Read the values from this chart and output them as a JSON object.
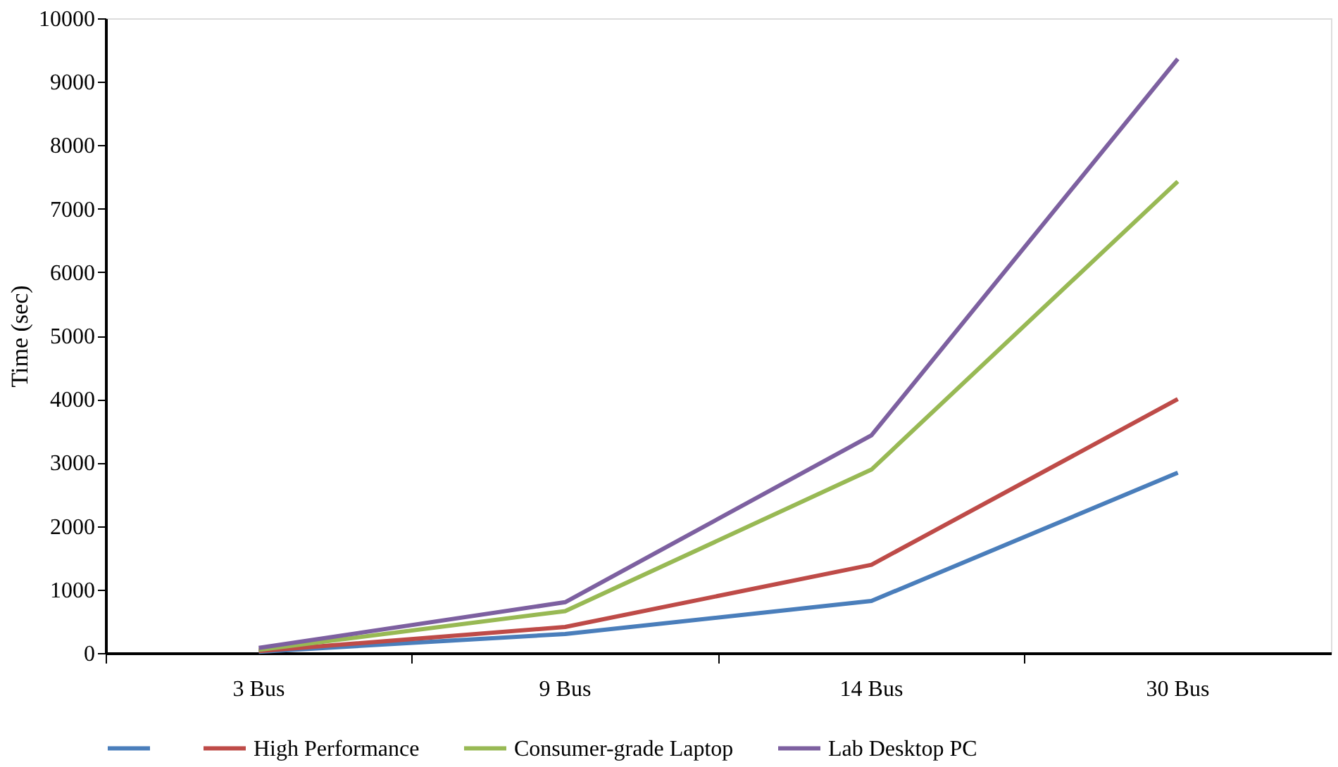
{
  "chart_data": {
    "type": "line",
    "ylabel": "Time (sec)",
    "categories": [
      "3 Bus",
      "9 Bus",
      "14 Bus",
      "30 Bus"
    ],
    "series": [
      {
        "color": "#4a7ebb",
        "values": [
          20,
          300,
          820,
          2840
        ]
      },
      {
        "name": "High Performance",
        "color": "#be4b48",
        "values": [
          30,
          410,
          1390,
          4000
        ]
      },
      {
        "name": "Consumer-grade Laptop",
        "color": "#98b954",
        "values": [
          50,
          660,
          2890,
          7430
        ]
      },
      {
        "name": "Lab Desktop PC",
        "color": "#7d60a0",
        "values": [
          80,
          800,
          3430,
          9360
        ]
      }
    ],
    "ylim": [
      0,
      10000
    ],
    "yticks": [
      0,
      1000,
      2000,
      3000,
      4000,
      5000,
      6000,
      7000,
      8000,
      9000,
      10000
    ],
    "grid": false,
    "legend": "bottom",
    "marker": "none",
    "line_style": "solid"
  }
}
